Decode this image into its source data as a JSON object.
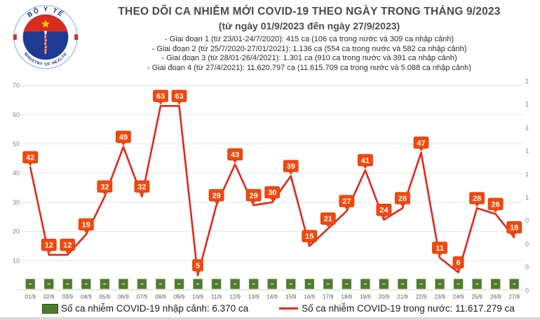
{
  "logo": {
    "top_text": "BỘ Y TẾ",
    "bottom_text": "MINISTRY OF HEALTH"
  },
  "header": {
    "title": "THEO DÕI CA NHIỄM MỚI COVID-19 THEO NGÀY TRONG THÁNG 9/2023",
    "subtitle": "(từ ngày 01/9/2023 đến ngày 27/9/2023)",
    "stages": [
      "- Giai đoạn 1 (từ 23/01-24/7/2020): 415 ca (106 ca trong nước và 309 ca nhập cảnh)",
      "- Giai đoạn 2 (từ 25/7/2020-27/01/2021): 1.136 ca (554 ca trong nước và 582 ca nhập cảnh)",
      "- Giai đoạn 3 (từ 28/01-26/4/2021): 1.301 ca (910 ca trong nước và 391 ca nhập cảnh)",
      "- Giai đoạn 4 (từ 27/4/2021): 11.620.797 ca (11.615.709 ca trong nước và 5.088 ca nhập cảnh)"
    ]
  },
  "chart_data": {
    "type": "line",
    "title": "THEO DÕI CA NHIỄM MỚI COVID-19 THEO NGÀY TRONG THÁNG 9/2023",
    "categories": [
      "01/9",
      "02/9",
      "03/9",
      "04/9",
      "05/9",
      "06/9",
      "07/9",
      "08/9",
      "09/9",
      "10/9",
      "11/9",
      "12/9",
      "13/9",
      "14/9",
      "15/9",
      "16/9",
      "17/9",
      "18/9",
      "19/9",
      "20/9",
      "21/9",
      "22/9",
      "23/9",
      "24/9",
      "25/9",
      "26/9",
      "27/9"
    ],
    "series": [
      {
        "name": "Số ca nhiễm COVID-19 trong nước",
        "type": "line",
        "color": "#e52619",
        "values": [
          42,
          12,
          12,
          19,
          32,
          49,
          32,
          63,
          63,
          5,
          29,
          43,
          29,
          30,
          39,
          15,
          21,
          27,
          41,
          24,
          28,
          47,
          11,
          6,
          28,
          26,
          18
        ]
      },
      {
        "name": "Số ca nhiễm COVID-19 nhập cảnh",
        "type": "bar",
        "color": "#4f7b31",
        "bar_label": "-"
      }
    ],
    "xlabel": "",
    "ylabel": "",
    "ylim": [
      0,
      70
    ],
    "y_ticks": [
      70,
      60,
      50,
      40,
      30,
      20,
      10
    ],
    "y_zero_label": "-",
    "right_axis_truncated_labels": [
      "1",
      "1",
      "1",
      "1",
      "1",
      "1",
      "0",
      "0",
      "0",
      "0"
    ],
    "grid": true,
    "legend_position": "bottom",
    "label_box_color": "#f4470b",
    "label_box_border": "#d83a04",
    "grid_color": "#e4e4e4",
    "axis_text_color": "#808080",
    "x_text_color": "#595959"
  },
  "legend": {
    "imported": {
      "label": "Số ca nhiễm COVID-19 nhập cảnh: 6.370 ca",
      "color": "#4f7b31"
    },
    "domestic": {
      "label": "Số ca nhiễm COVID-19 trong nước: 11.617.279 ca",
      "color": "#e52619"
    }
  }
}
